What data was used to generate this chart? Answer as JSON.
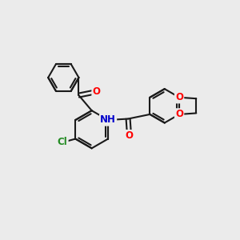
{
  "bg_color": "#ebebeb",
  "bond_color": "#1a1a1a",
  "bond_width": 1.5,
  "atom_colors": {
    "O": "#ff0000",
    "N": "#0000cc",
    "Cl": "#228b22",
    "C": "#1a1a1a"
  },
  "font_size": 8.5,
  "fig_bg": "#ebebeb"
}
